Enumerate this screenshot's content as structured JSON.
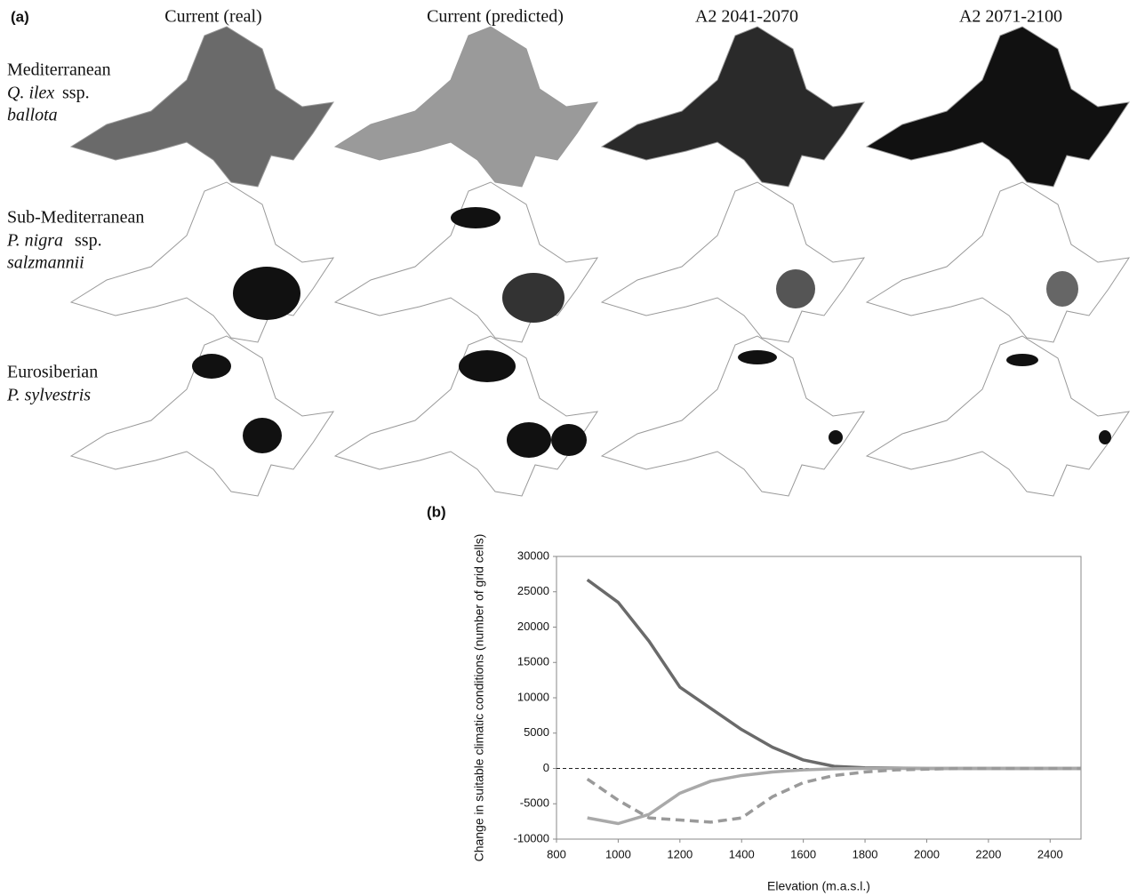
{
  "panel_a": {
    "label": "(a)",
    "columns": [
      "Current (real)",
      "Current (predicted)",
      "A2 2041-2070",
      "A2 2071-2100"
    ],
    "rows": [
      {
        "group": "Mediterranean",
        "species": "Q. ilex",
        "subsp": "ssp.",
        "subsp_name": "ballota"
      },
      {
        "group": "Sub-Mediterranean",
        "species": "P. nigra",
        "subsp": "ssp.",
        "subsp_name": "salzmannii"
      },
      {
        "group": "Eurosiberian",
        "species": "P. sylvestris"
      }
    ]
  },
  "chart_data": {
    "type": "line",
    "panel_label": "(b)",
    "x_label": "Elevation (m.a.s.l.)",
    "y_label": "Change in suitable climatic conditions (number of grid cells)",
    "x": [
      900,
      1000,
      1100,
      1200,
      1300,
      1400,
      1500,
      1600,
      1700,
      1800,
      1900,
      2000,
      2100,
      2200,
      2300,
      2400,
      2500
    ],
    "series": [
      {
        "color": "#6a6a6a",
        "dash": "solid",
        "values": [
          26700,
          23500,
          18000,
          11500,
          8500,
          5500,
          3000,
          1200,
          300,
          100,
          50,
          0,
          0,
          0,
          0,
          0,
          0
        ]
      },
      {
        "color": "#a9a9a9",
        "dash": "solid",
        "values": [
          -7000,
          -7800,
          -6500,
          -3500,
          -1800,
          -1000,
          -500,
          -200,
          -50,
          0,
          0,
          0,
          0,
          0,
          0,
          0,
          0
        ]
      },
      {
        "color": "#9a9a9a",
        "dash": "dashed",
        "values": [
          -1500,
          -4500,
          -7000,
          -7300,
          -7600,
          -7000,
          -4000,
          -2000,
          -1000,
          -500,
          -200,
          -100,
          0,
          0,
          0,
          0,
          0
        ]
      }
    ],
    "xlim": [
      800,
      2500
    ],
    "xticks": [
      800,
      1000,
      1200,
      1400,
      1600,
      1800,
      2000,
      2200,
      2400
    ],
    "ylim": [
      -10000,
      30000
    ],
    "yticks": [
      -10000,
      -5000,
      0,
      5000,
      10000,
      15000,
      20000,
      25000,
      30000
    ],
    "zero_line": true
  }
}
